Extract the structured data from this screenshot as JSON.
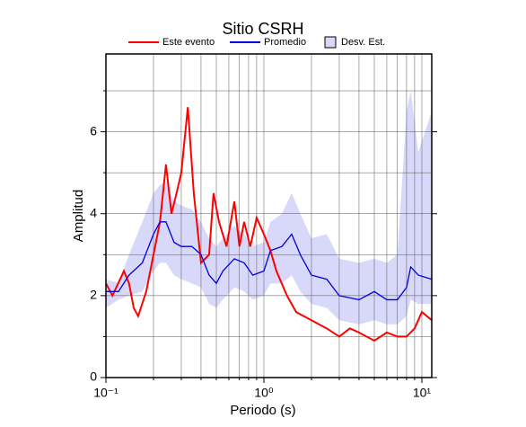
{
  "chart_data": {
    "type": "line",
    "title": "Sitio CSRH",
    "x_label": "Periodo (s)",
    "y_label": "Amplitud",
    "log_x": true,
    "grid": true,
    "xlim": [
      0.1,
      11.55
    ],
    "ylim": [
      0,
      7.9
    ],
    "xticks": [
      {
        "value": 0.1,
        "label": "10⁻¹"
      },
      {
        "value": 1,
        "label": "10⁰"
      },
      {
        "value": 10,
        "label": "10¹"
      }
    ],
    "minor_xticks": [
      0.2,
      0.3,
      0.4,
      0.5,
      0.6,
      0.7,
      0.8,
      0.9,
      2,
      3,
      4,
      5,
      6,
      7,
      8,
      9
    ],
    "yticks": [
      0,
      2,
      4,
      6
    ],
    "minor_yticks": [
      1,
      3,
      5,
      7
    ],
    "band": {
      "name": "Desv. Est.",
      "color": "#d8d8fa",
      "x": [
        0.1,
        0.12,
        0.14,
        0.17,
        0.2,
        0.22,
        0.24,
        0.27,
        0.3,
        0.35,
        0.4,
        0.45,
        0.5,
        0.55,
        0.65,
        0.75,
        0.85,
        1.0,
        1.1,
        1.3,
        1.5,
        1.7,
        2.0,
        2.5,
        3.0,
        4,
        5,
        6,
        7,
        8,
        8.5,
        9.5,
        11.55
      ],
      "lower": [
        1.7,
        1.9,
        2.0,
        2.1,
        2.6,
        2.8,
        2.8,
        2.5,
        2.4,
        2.3,
        2.2,
        1.8,
        1.7,
        1.9,
        2.2,
        2.1,
        1.9,
        2.0,
        2.3,
        2.3,
        2.5,
        2.1,
        1.8,
        1.7,
        1.4,
        1.3,
        1.4,
        1.3,
        1.3,
        1.5,
        1.9,
        1.8,
        1.8
      ],
      "upper": [
        2.4,
        2.3,
        3.0,
        3.8,
        4.5,
        4.7,
        4.8,
        4.3,
        4.2,
        4.1,
        3.8,
        3.4,
        3.2,
        3.4,
        3.7,
        3.5,
        3.2,
        3.3,
        3.8,
        4.0,
        4.5,
        4.0,
        3.4,
        3.5,
        2.9,
        2.8,
        2.9,
        2.8,
        3.0,
        6.5,
        7.0,
        5.5,
        6.5
      ]
    },
    "series": [
      {
        "name": "Este evento",
        "color": "#ff0000",
        "x": [
          0.1,
          0.11,
          0.13,
          0.14,
          0.15,
          0.16,
          0.18,
          0.2,
          0.22,
          0.24,
          0.26,
          0.28,
          0.3,
          0.33,
          0.36,
          0.4,
          0.45,
          0.48,
          0.52,
          0.58,
          0.65,
          0.7,
          0.75,
          0.82,
          0.9,
          1.0,
          1.1,
          1.2,
          1.4,
          1.6,
          2.0,
          2.5,
          3,
          3.5,
          4,
          5,
          6,
          7,
          8,
          9,
          10,
          11.55
        ],
        "values": [
          2.3,
          2.0,
          2.6,
          2.3,
          1.7,
          1.5,
          2.1,
          3.0,
          3.8,
          5.2,
          4.0,
          4.5,
          5.0,
          6.6,
          4.5,
          2.8,
          3.0,
          4.5,
          3.8,
          3.2,
          4.3,
          3.2,
          3.8,
          3.2,
          3.9,
          3.5,
          3.1,
          2.6,
          2.0,
          1.6,
          1.4,
          1.2,
          1.0,
          1.2,
          1.1,
          0.9,
          1.1,
          1.0,
          1.0,
          1.2,
          1.6,
          1.4
        ]
      },
      {
        "name": "Promedio",
        "color": "#0000dd",
        "x": [
          0.1,
          0.12,
          0.14,
          0.17,
          0.2,
          0.22,
          0.24,
          0.27,
          0.3,
          0.35,
          0.4,
          0.45,
          0.5,
          0.55,
          0.65,
          0.75,
          0.85,
          1.0,
          1.1,
          1.3,
          1.5,
          1.7,
          2.0,
          2.5,
          3.0,
          4,
          5,
          6,
          7,
          8,
          8.5,
          9.5,
          11.55
        ],
        "values": [
          2.1,
          2.1,
          2.5,
          2.8,
          3.5,
          3.8,
          3.8,
          3.3,
          3.2,
          3.2,
          3.0,
          2.5,
          2.3,
          2.6,
          2.9,
          2.8,
          2.5,
          2.6,
          3.1,
          3.2,
          3.5,
          3.0,
          2.5,
          2.4,
          2.0,
          1.9,
          2.1,
          1.9,
          1.9,
          2.2,
          2.7,
          2.5,
          2.4
        ]
      }
    ]
  }
}
